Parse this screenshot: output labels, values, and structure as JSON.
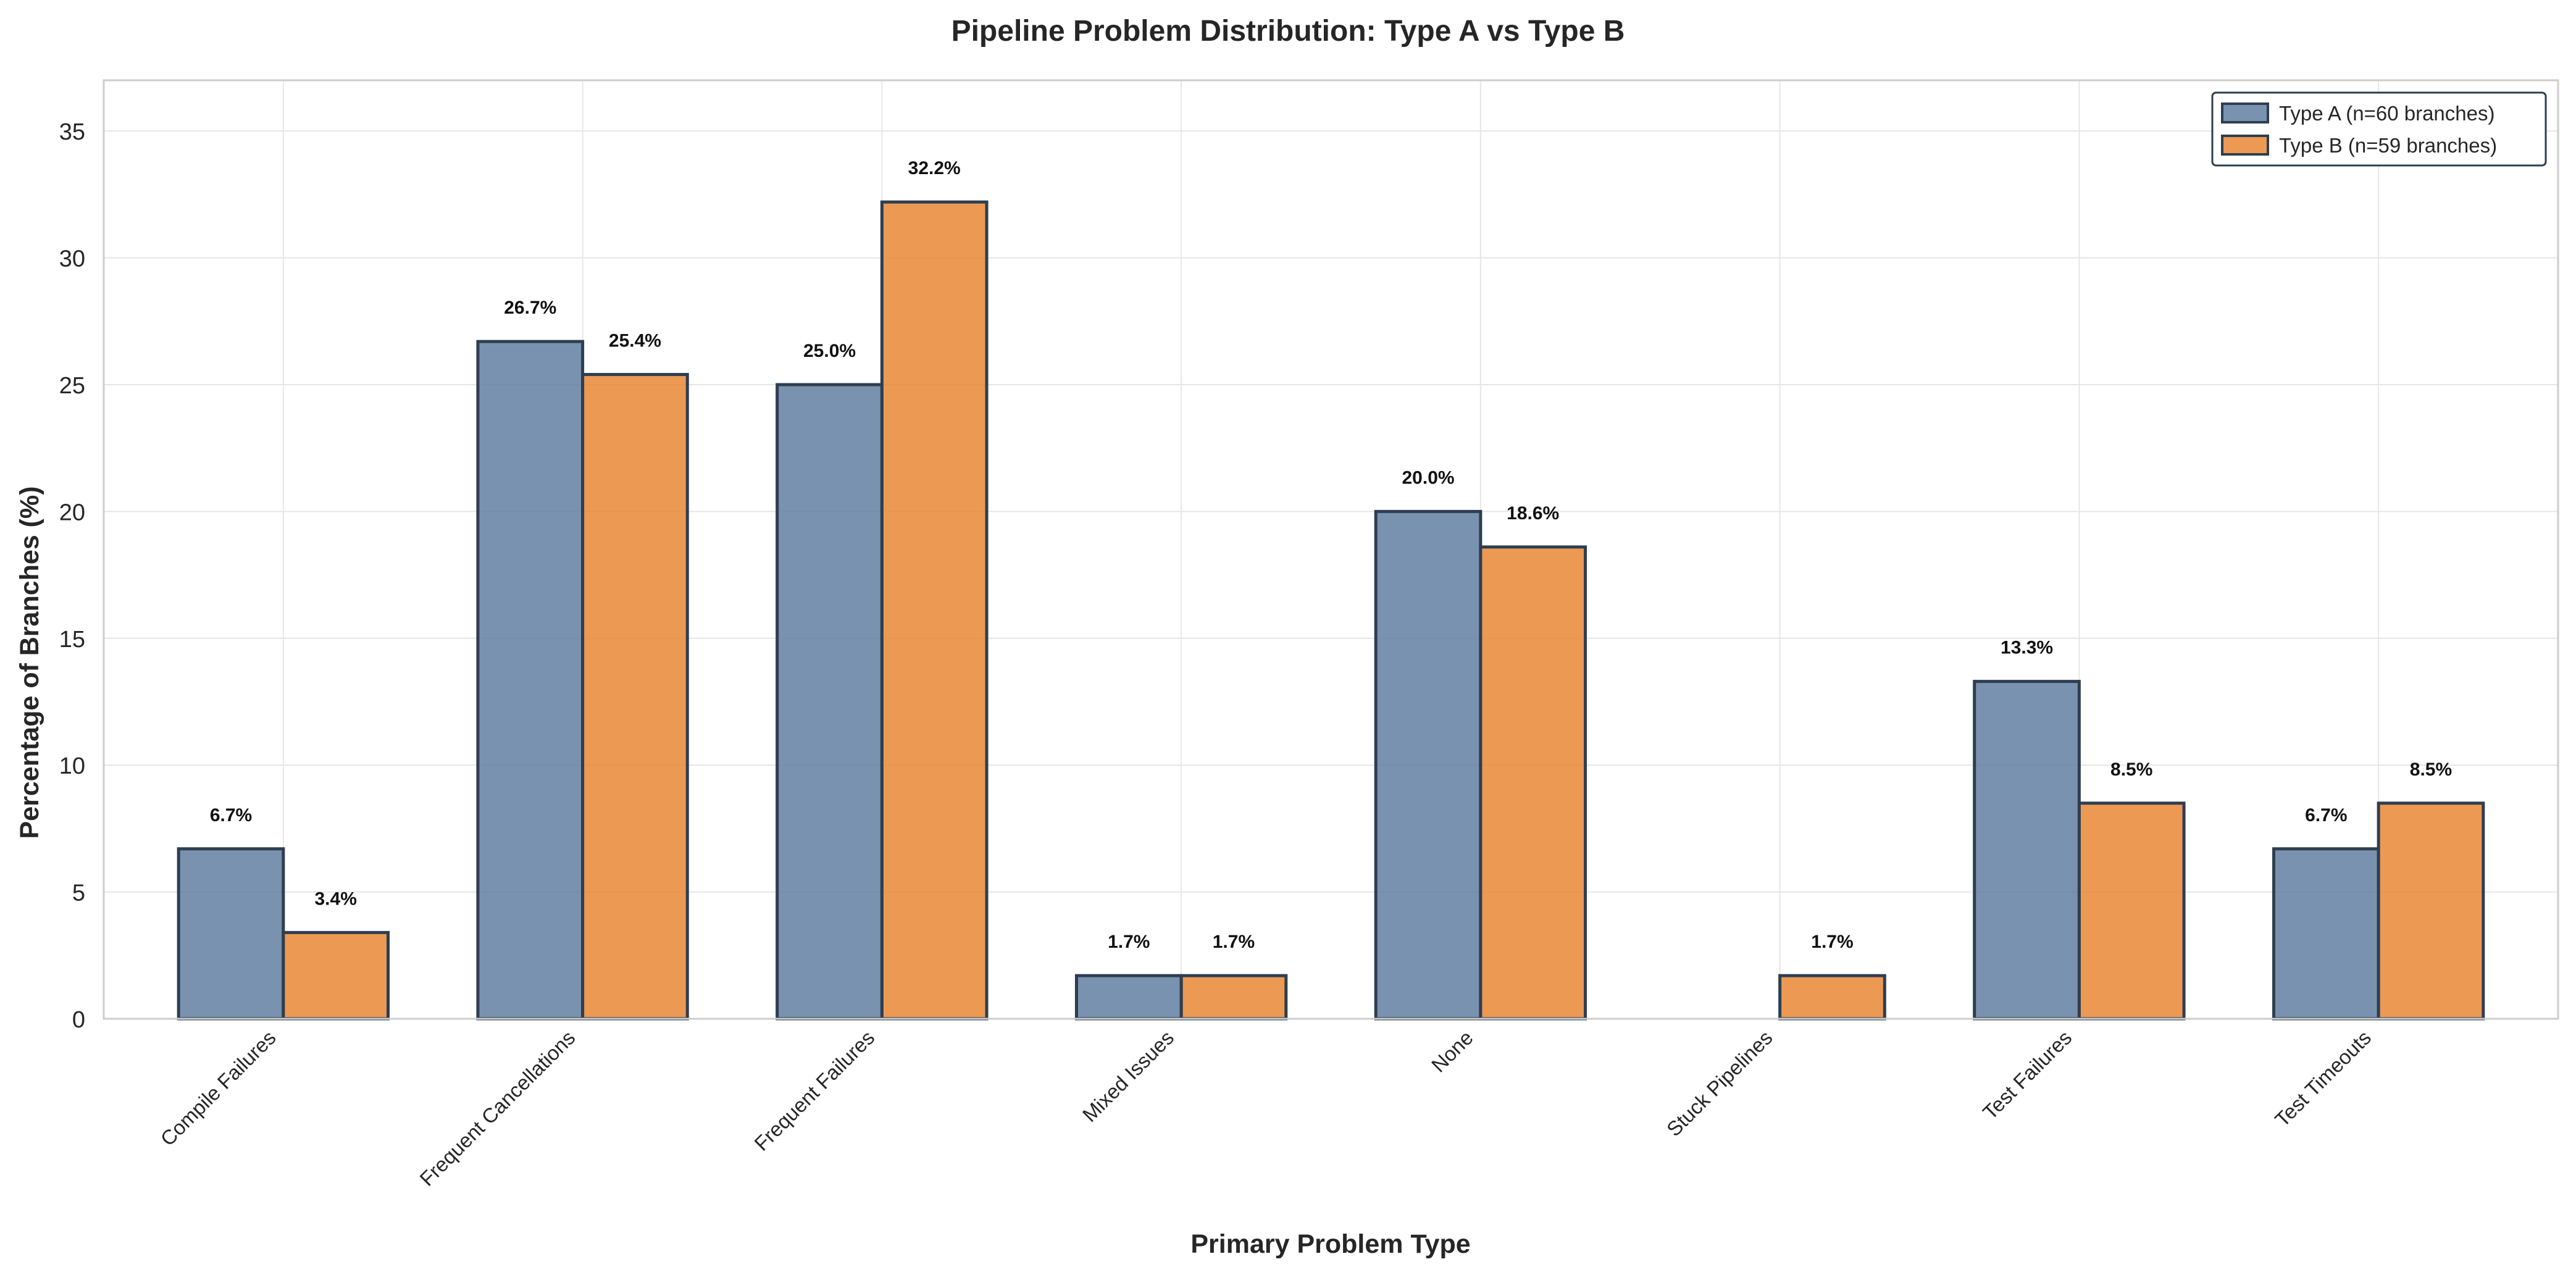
{
  "chart_data": {
    "type": "bar",
    "title": "Pipeline Problem Distribution: Type A vs Type B",
    "xlabel": "Primary Problem Type",
    "ylabel": "Percentage of Branches (%)",
    "ylim": [
      0,
      37
    ],
    "yticks": [
      0,
      5,
      10,
      15,
      20,
      25,
      30,
      35
    ],
    "grid": true,
    "legend_position": "top-right",
    "categories": [
      "Compile Failures",
      "Frequent Cancellations",
      "Frequent Failures",
      "Mixed Issues",
      "None",
      "Stuck Pipelines",
      "Test Failures",
      "Test Timeouts"
    ],
    "series": [
      {
        "name": "Type A (n=60 branches)",
        "color": "#5b7a9e",
        "values": [
          6.7,
          26.7,
          25.0,
          1.7,
          20.0,
          0.0,
          13.3,
          6.7
        ],
        "labels": [
          "6.7%",
          "26.7%",
          "25.0%",
          "1.7%",
          "20.0%",
          "",
          "13.3%",
          "6.7%"
        ]
      },
      {
        "name": "Type B (n=59 branches)",
        "color": "#e8822e",
        "values": [
          3.4,
          25.4,
          32.2,
          1.7,
          18.6,
          1.7,
          8.5,
          8.5
        ],
        "labels": [
          "3.4%",
          "25.4%",
          "32.2%",
          "1.7%",
          "18.6%",
          "1.7%",
          "8.5%",
          "8.5%"
        ]
      }
    ],
    "colors": {
      "bar_edge": "#2e3e50",
      "grid": "#e6e6e6",
      "frame": "#cccccc"
    }
  }
}
